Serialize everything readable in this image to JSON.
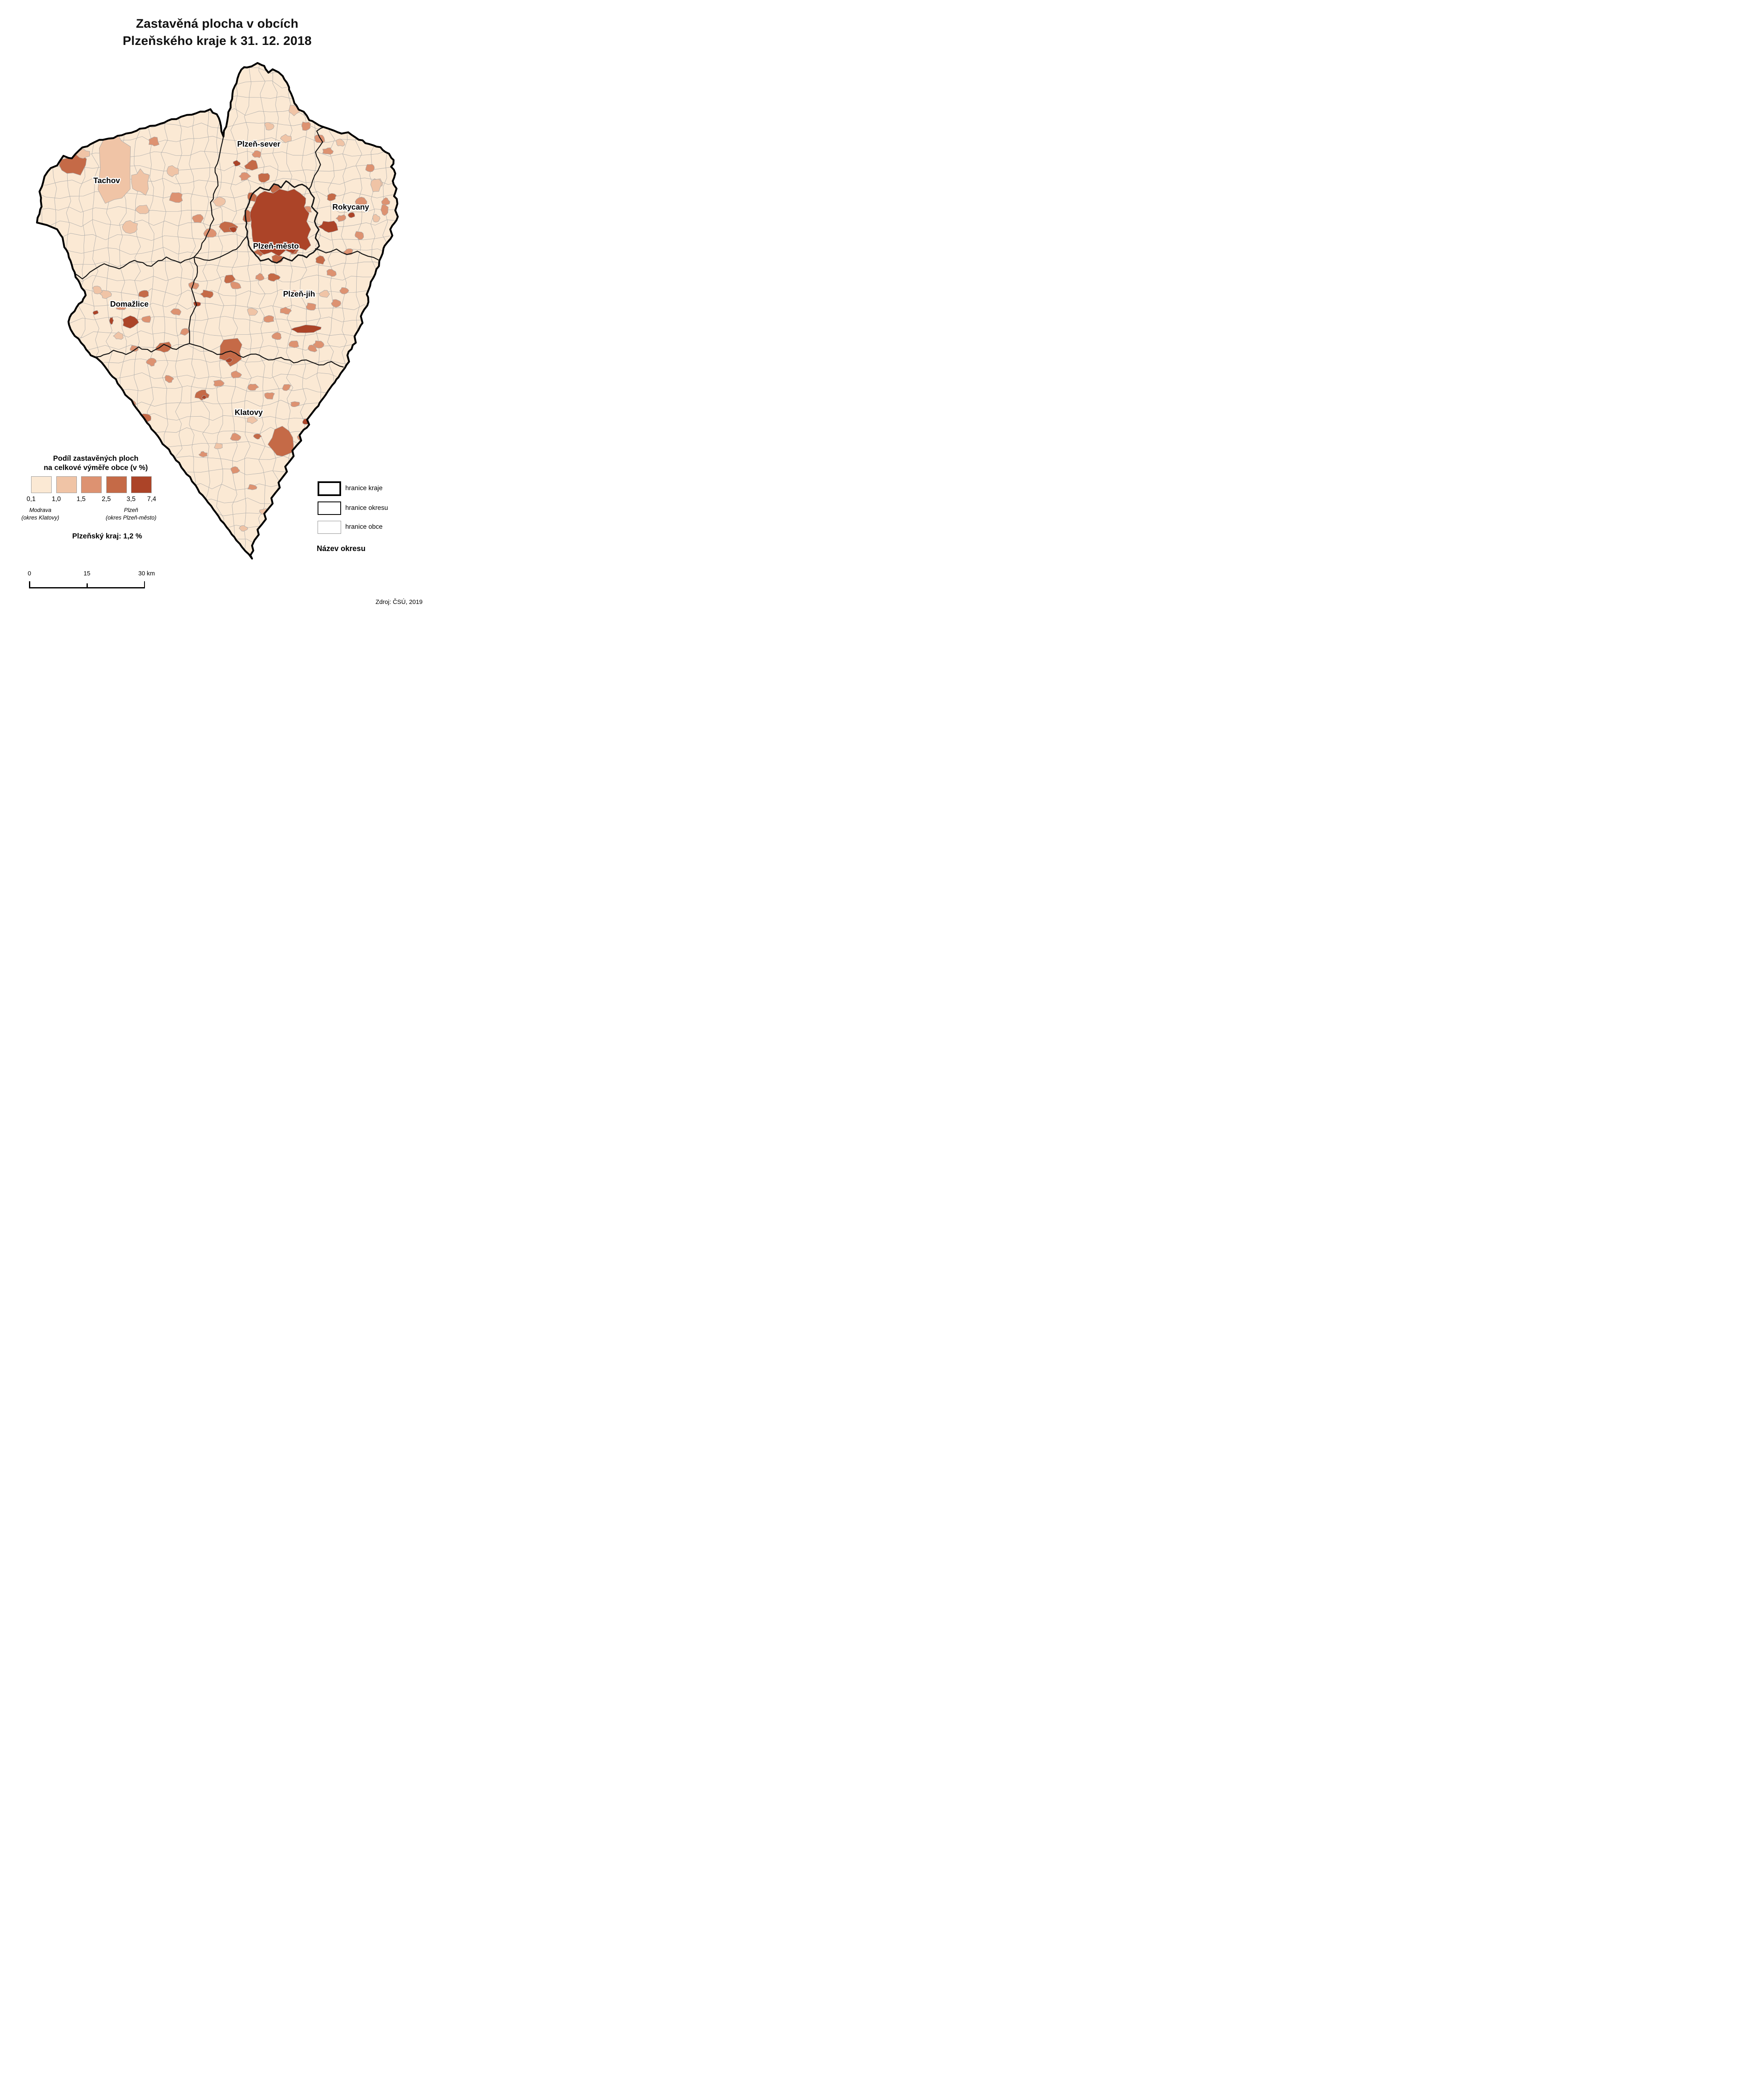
{
  "title": {
    "line1": "Zastavěná plocha v obcích",
    "line2": "Plzeňského kraje k 31. 12. 2018"
  },
  "map": {
    "district_labels": [
      {
        "name": "Tachov"
      },
      {
        "name": "Plzeň-sever"
      },
      {
        "name": "Rokycany"
      },
      {
        "name": "Plzeň-město"
      },
      {
        "name": "Plzeň-jih"
      },
      {
        "name": "Domažlice"
      },
      {
        "name": "Klatovy"
      }
    ]
  },
  "legend": {
    "title_line1": "Podíl zastavěných ploch",
    "title_line2": "na celkové výměře obce (v %)",
    "class_breaks": [
      "0,1",
      "1,0",
      "1,5",
      "2,5",
      "3,5",
      "7,4"
    ],
    "class_colors": [
      "#FBE9D4",
      "#F0C4A6",
      "#DD9271",
      "#C56A47",
      "#AC4428"
    ],
    "min_annotation": {
      "line1": "Modrava",
      "line2": "(okres Klatovy)"
    },
    "max_annotation": {
      "line1": "Plzeň",
      "line2": "(okres Plzeň-město)"
    },
    "region_average": "Plzeňský kraj: 1,2 %"
  },
  "boundary_legend": {
    "items": [
      {
        "label": "hranice kraje"
      },
      {
        "label": "hranice okresu"
      },
      {
        "label": "hranice obce"
      }
    ],
    "district_name_sample": "Název okresu"
  },
  "scale_bar": {
    "labels": [
      "0",
      "15",
      "30 km"
    ]
  },
  "source": "Zdroj: ČSÚ, 2019",
  "colors": {
    "page_background": "#ffffff",
    "region_border": "#000000",
    "district_border": "#141414",
    "municipality_border": "#a9a9a9",
    "label_halo": "#ffffff"
  }
}
